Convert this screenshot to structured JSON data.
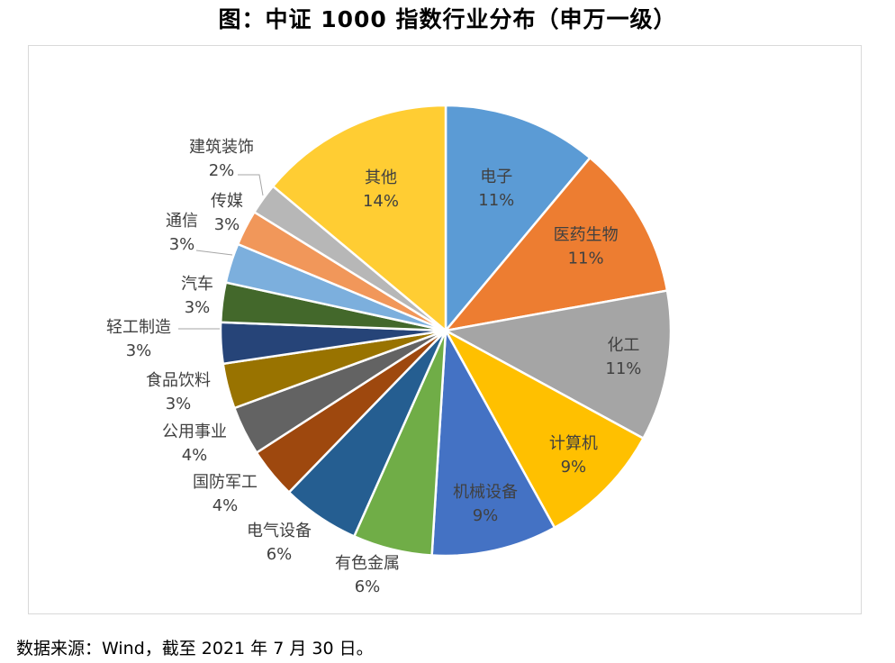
{
  "chart_data": {
    "type": "pie",
    "title": "图：中证 1000 指数行业分布（申万一级）",
    "slices": [
      {
        "name": "电子",
        "label": "11%",
        "value": 11.3,
        "color": "#5B9BD5"
      },
      {
        "name": "医药生物",
        "label": "11%",
        "value": 11.3,
        "color": "#ED7D31"
      },
      {
        "name": "化工",
        "label": "11%",
        "value": 11.0,
        "color": "#A5A5A5"
      },
      {
        "name": "计算机",
        "label": "9%",
        "value": 9.2,
        "color": "#FFC000"
      },
      {
        "name": "机械设备",
        "label": "9%",
        "value": 9.2,
        "color": "#4472C4"
      },
      {
        "name": "有色金属",
        "label": "6%",
        "value": 5.8,
        "color": "#70AD47"
      },
      {
        "name": "电气设备",
        "label": "6%",
        "value": 5.7,
        "color": "#255E91"
      },
      {
        "name": "国防军工",
        "label": "4%",
        "value": 3.7,
        "color": "#9E480E"
      },
      {
        "name": "公用事业",
        "label": "4%",
        "value": 3.6,
        "color": "#636363"
      },
      {
        "name": "食品饮料",
        "label": "3%",
        "value": 3.3,
        "color": "#997300"
      },
      {
        "name": "轻工制造",
        "label": "3%",
        "value": 3.0,
        "color": "#264478"
      },
      {
        "name": "汽车",
        "label": "3%",
        "value": 2.9,
        "color": "#43682B"
      },
      {
        "name": "通信",
        "label": "3%",
        "value": 2.9,
        "color": "#7CAFDD"
      },
      {
        "name": "传媒",
        "label": "3%",
        "value": 2.6,
        "color": "#F1975A"
      },
      {
        "name": "建筑装饰",
        "label": "2%",
        "value": 2.3,
        "color": "#B7B7B7"
      },
      {
        "name": "其他",
        "label": "14%",
        "value": 14.2,
        "color": "#FFCD33"
      }
    ]
  },
  "source": "数据来源：Wind，截至 2021 年 7 月 30 日。"
}
